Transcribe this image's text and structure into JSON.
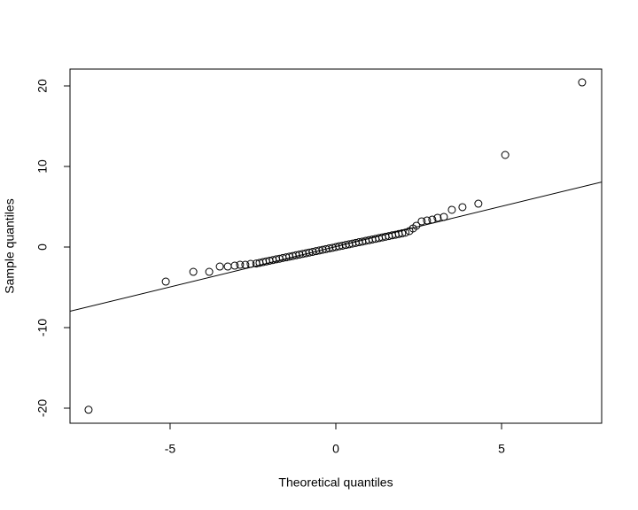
{
  "chart_data": {
    "type": "scatter",
    "xlabel": "Theoretical quantiles",
    "ylabel": "Sample quantiles",
    "x": [
      -7.46,
      -5.13,
      -4.3,
      -3.82,
      -3.5,
      -3.26,
      -3.05,
      -2.89,
      -2.73,
      -2.57,
      -2.4,
      -2.3,
      -2.2,
      -2.1,
      -2.0,
      -1.9,
      -1.8,
      -1.7,
      -1.6,
      -1.5,
      -1.4,
      -1.3,
      -1.2,
      -1.1,
      -1.0,
      -0.9,
      -0.8,
      -0.7,
      -0.6,
      -0.5,
      -0.4,
      -0.3,
      -0.2,
      -0.1,
      0,
      0.1,
      0.2,
      0.3,
      0.4,
      0.5,
      0.6,
      0.7,
      0.8,
      0.9,
      1.0,
      1.1,
      1.2,
      1.3,
      1.4,
      1.5,
      1.6,
      1.7,
      1.8,
      1.9,
      2.0,
      2.1,
      2.22,
      2.33,
      2.43,
      2.59,
      2.75,
      2.91,
      3.07,
      3.26,
      3.5,
      3.82,
      4.3,
      5.11,
      7.43
    ],
    "values": [
      -20.2,
      -4.29,
      -3.08,
      -3.08,
      -2.42,
      -2.42,
      -2.31,
      -2.2,
      -2.2,
      -2.09,
      -2.04,
      -1.96,
      -1.87,
      -1.79,
      -1.7,
      -1.62,
      -1.53,
      -1.45,
      -1.36,
      -1.28,
      -1.19,
      -1.11,
      -1.02,
      -0.94,
      -0.85,
      -0.77,
      -0.68,
      -0.6,
      -0.51,
      -0.43,
      -0.34,
      -0.26,
      -0.17,
      -0.09,
      0,
      0.09,
      0.17,
      0.26,
      0.34,
      0.43,
      0.51,
      0.6,
      0.68,
      0.77,
      0.85,
      0.94,
      1.02,
      1.11,
      1.19,
      1.28,
      1.36,
      1.45,
      1.53,
      1.62,
      1.7,
      1.79,
      1.98,
      2.31,
      2.64,
      3.19,
      3.3,
      3.41,
      3.63,
      3.74,
      4.62,
      4.95,
      5.38,
      11.43,
      20.44
    ],
    "color": "#000000",
    "reference_line": {
      "slope": 1.0,
      "intercept": 0.05
    },
    "xlim": [
      -8.02,
      8.02
    ],
    "xticks": [
      -5,
      0,
      5
    ],
    "ylim": [
      -21.87,
      22.09
    ],
    "yticks": [
      -20,
      -10,
      0,
      10,
      20
    ]
  }
}
